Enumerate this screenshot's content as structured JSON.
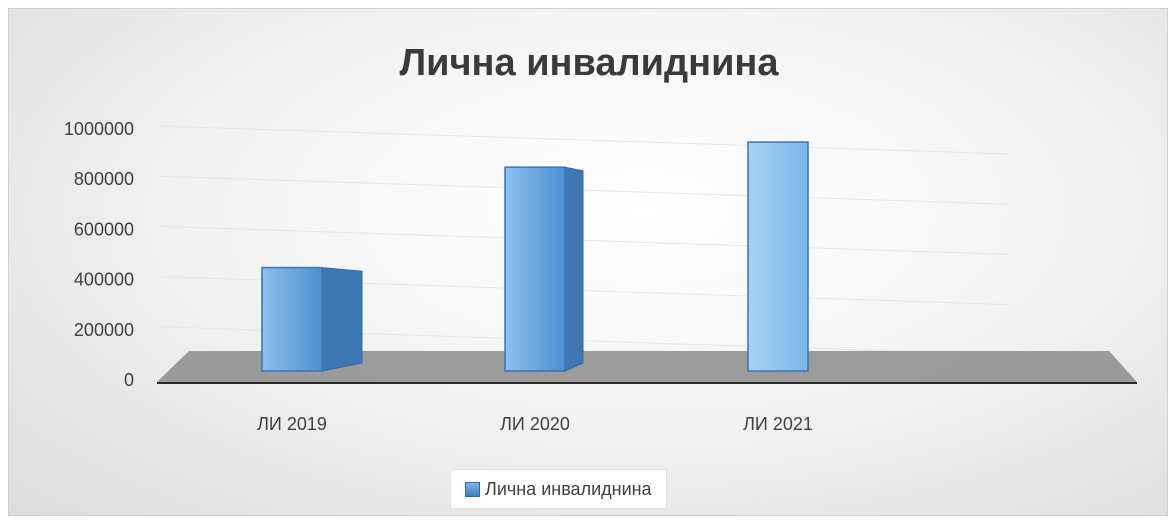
{
  "chart_data": {
    "type": "bar",
    "title": "Лична инвалиднина",
    "categories": [
      "ЛИ 2019",
      "ЛИ 2020",
      "ЛИ 2021",
      ""
    ],
    "series": [
      {
        "name": "Лична инвалиднина",
        "values": [
          420000,
          820000,
          920000,
          null
        ]
      }
    ],
    "ylim": [
      0,
      1000000
    ],
    "yticks": [
      0,
      200000,
      400000,
      600000,
      800000,
      1000000
    ],
    "ytick_labels": [
      "0",
      "200000",
      "400000",
      "600000",
      "800000",
      "1000000"
    ],
    "xlabel": "",
    "ylabel": "",
    "grid": true,
    "legend": "bottom",
    "style": "3d-column"
  },
  "colors": {
    "bar_front": "#5b9bd5",
    "bar_side": "#3e78b2",
    "floor": "#8c8c8c",
    "gridline": "#e6e6e6"
  }
}
